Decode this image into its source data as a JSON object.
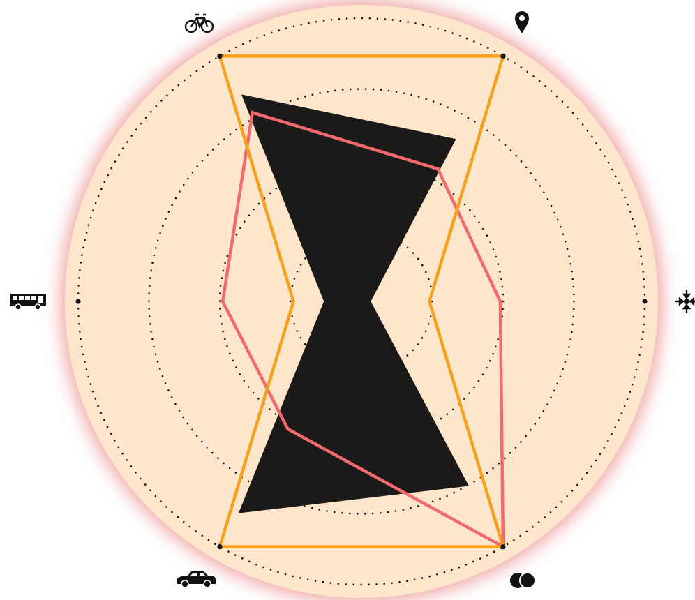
{
  "chart_data": {
    "type": "radar",
    "axes": [
      {
        "name": "bicycle",
        "icon": "bicycle-icon"
      },
      {
        "name": "location",
        "icon": "map-pin-icon"
      },
      {
        "name": "convergence",
        "icon": "converge-arrows-icon"
      },
      {
        "name": "overlap",
        "icon": "overlapping-circles-icon"
      },
      {
        "name": "car",
        "icon": "car-icon"
      },
      {
        "name": "bus",
        "icon": "bus-icon"
      }
    ],
    "rmax": 1.0,
    "rings": [
      0.25,
      0.5,
      0.75,
      1.0
    ],
    "grid": true,
    "series": [
      {
        "color": "#1c1a19",
        "style": "filled",
        "values": [
          0.84,
          0.66,
          0.03,
          0.75,
          0.86,
          0.13
        ]
      },
      {
        "color": "#f26a6c",
        "style": "outline",
        "values": [
          0.77,
          0.54,
          0.49,
          1.0,
          0.52,
          0.49
        ]
      },
      {
        "color": "#f6a020",
        "style": "outline",
        "values": [
          1.0,
          1.0,
          0.24,
          1.0,
          1.0,
          0.24
        ]
      }
    ],
    "colors": {
      "background": "#fde6cc",
      "glow": "#f1a8a8",
      "grid": "#141414"
    }
  }
}
